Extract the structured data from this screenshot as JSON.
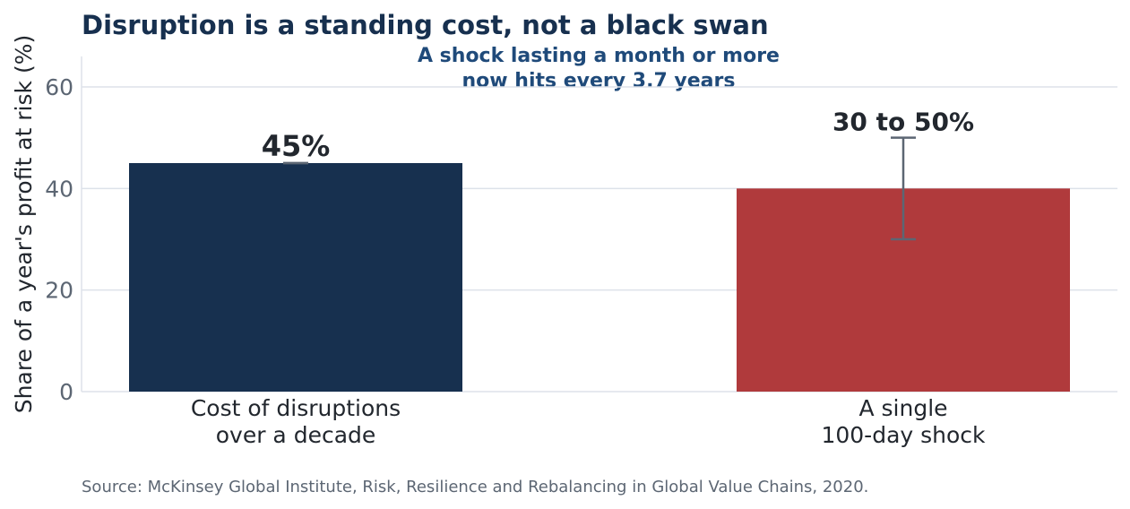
{
  "chart_data": {
    "type": "bar",
    "title": "Disruption is a standing cost, not a black swan",
    "subtitle_lines": [
      "A shock lasting a month or more",
      "now hits every 3.7 years"
    ],
    "ylabel": "Share of a year's profit at risk (%)",
    "xlabel": "",
    "ylim": [
      0,
      66
    ],
    "yticks": [
      0,
      20,
      40,
      60
    ],
    "grid": true,
    "categories": [
      [
        "Cost of disruptions",
        "over a decade"
      ],
      [
        "A single",
        "100-day shock"
      ]
    ],
    "values": [
      45,
      40
    ],
    "error_range": [
      [
        45,
        45
      ],
      [
        30,
        50
      ]
    ],
    "colors": [
      "#17304f",
      "#b03a3c"
    ],
    "data_labels": [
      "45%",
      "30 to 50%"
    ],
    "source": "Source: McKinsey Global Institute, Risk, Resilience and Rebalancing in Global Value Chains, 2020."
  }
}
